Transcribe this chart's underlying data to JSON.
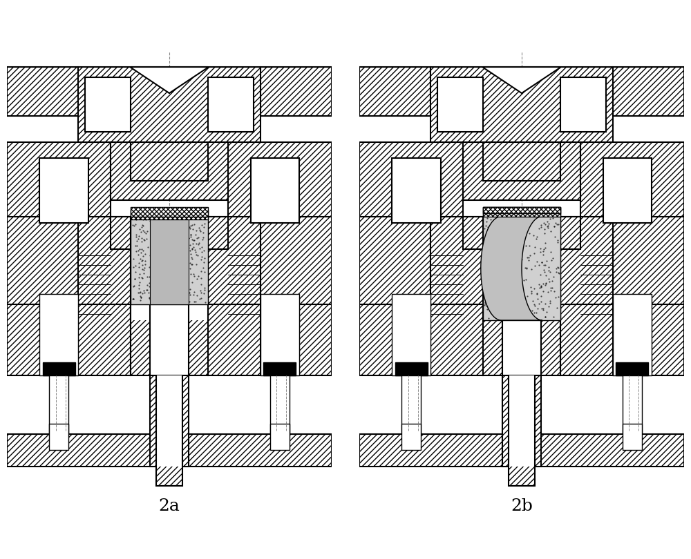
{
  "bg_color": "#ffffff",
  "lc": "#000000",
  "hatch": "////",
  "gray_billet": "#c8c8c8",
  "label_2a": "2a",
  "label_2b": "2b",
  "label_fs": 18
}
